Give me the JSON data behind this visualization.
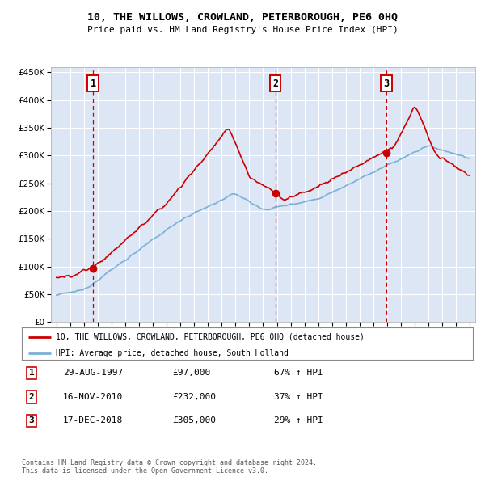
{
  "title": "10, THE WILLOWS, CROWLAND, PETERBOROUGH, PE6 0HQ",
  "subtitle": "Price paid vs. HM Land Registry's House Price Index (HPI)",
  "ylabel_values": [
    0,
    50000,
    100000,
    150000,
    200000,
    250000,
    300000,
    350000,
    400000,
    450000
  ],
  "ylabel_labels": [
    "£0",
    "£50K",
    "£100K",
    "£150K",
    "£200K",
    "£250K",
    "£300K",
    "£350K",
    "£400K",
    "£450K"
  ],
  "ylim": [
    0,
    460000
  ],
  "xlim_start": 1994.6,
  "xlim_end": 2025.4,
  "bg_color": "#dce6f5",
  "grid_color": "#ffffff",
  "sale_color": "#cc0000",
  "hpi_color": "#7ab0d4",
  "sales": [
    {
      "year": 1997.66,
      "price": 97000,
      "label": "1",
      "date": "29-AUG-1997",
      "formatted": "£97,000",
      "pct": "67% ↑ HPI"
    },
    {
      "year": 2010.88,
      "price": 232000,
      "label": "2",
      "date": "16-NOV-2010",
      "formatted": "£232,000",
      "pct": "37% ↑ HPI"
    },
    {
      "year": 2018.96,
      "price": 305000,
      "label": "3",
      "date": "17-DEC-2018",
      "formatted": "£305,000",
      "pct": "29% ↑ HPI"
    }
  ],
  "legend_line1": "10, THE WILLOWS, CROWLAND, PETERBOROUGH, PE6 0HQ (detached house)",
  "legend_line2": "HPI: Average price, detached house, South Holland",
  "footer": "Contains HM Land Registry data © Crown copyright and database right 2024.\nThis data is licensed under the Open Government Licence v3.0."
}
